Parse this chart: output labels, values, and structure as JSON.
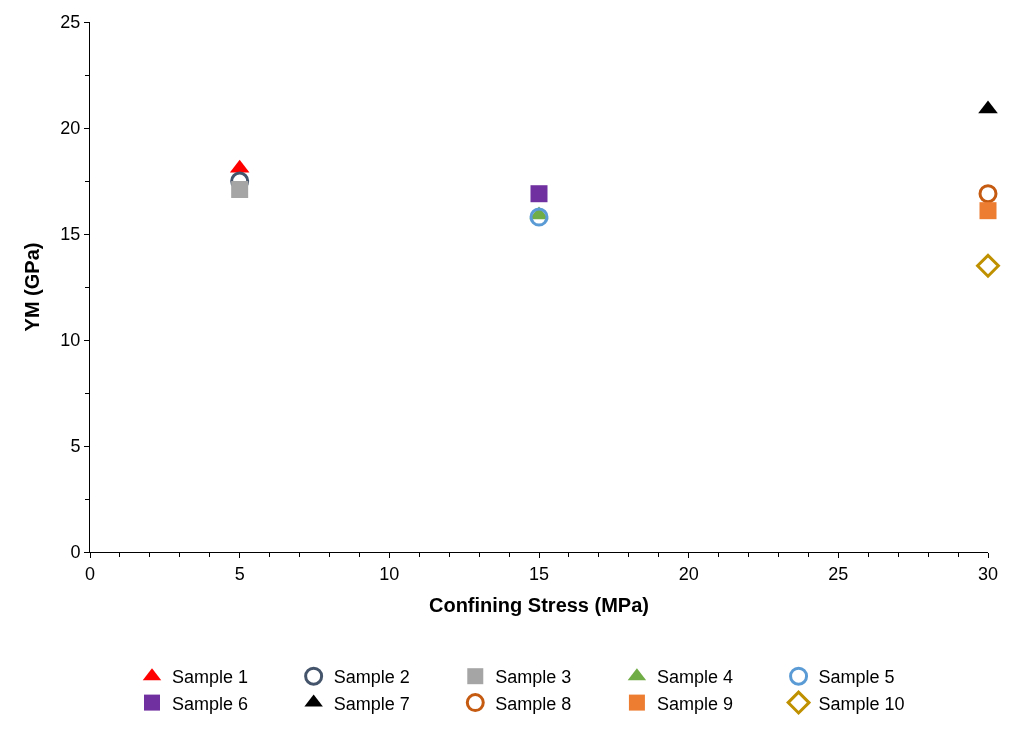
{
  "chart_data": {
    "type": "scatter",
    "xlabel": "Confining Stress (MPa)",
    "ylabel": "YM (GPa)",
    "xlim": [
      0,
      30
    ],
    "xticks": [
      0,
      5,
      10,
      15,
      20,
      25,
      30
    ],
    "ylim": [
      0,
      25
    ],
    "yticks": [
      0,
      5,
      10,
      15,
      20,
      25
    ],
    "legend": "bottom",
    "series": [
      {
        "name": "Sample 1",
        "color": "#ff0000",
        "marker": "triangle",
        "x": [
          5
        ],
        "values": [
          18.1
        ]
      },
      {
        "name": "Sample 2",
        "color": "#44546a",
        "marker": "circle",
        "x": [
          5
        ],
        "values": [
          17.5
        ]
      },
      {
        "name": "Sample 3",
        "color": "#a5a5a5",
        "marker": "square",
        "x": [
          5
        ],
        "values": [
          17.1
        ]
      },
      {
        "name": "Sample 4",
        "color": "#70ad47",
        "marker": "triangle",
        "x": [
          15
        ],
        "values": [
          15.9
        ]
      },
      {
        "name": "Sample 5",
        "color": "#5b9bd5",
        "marker": "circle",
        "x": [
          15
        ],
        "values": [
          15.8
        ]
      },
      {
        "name": "Sample 6",
        "color": "#7030a0",
        "marker": "square",
        "x": [
          15
        ],
        "values": [
          16.9
        ]
      },
      {
        "name": "Sample 7",
        "color": "#000000",
        "marker": "triangle",
        "x": [
          30
        ],
        "values": [
          20.9
        ]
      },
      {
        "name": "Sample 8",
        "color": "#c55a11",
        "marker": "circle",
        "x": [
          30
        ],
        "values": [
          16.9
        ]
      },
      {
        "name": "Sample 9",
        "color": "#ed7d31",
        "marker": "square",
        "x": [
          30
        ],
        "values": [
          16.1
        ]
      },
      {
        "name": "Sample 10",
        "color": "#bf9000",
        "marker": "diamond",
        "x": [
          30
        ],
        "values": [
          13.5
        ]
      }
    ]
  }
}
